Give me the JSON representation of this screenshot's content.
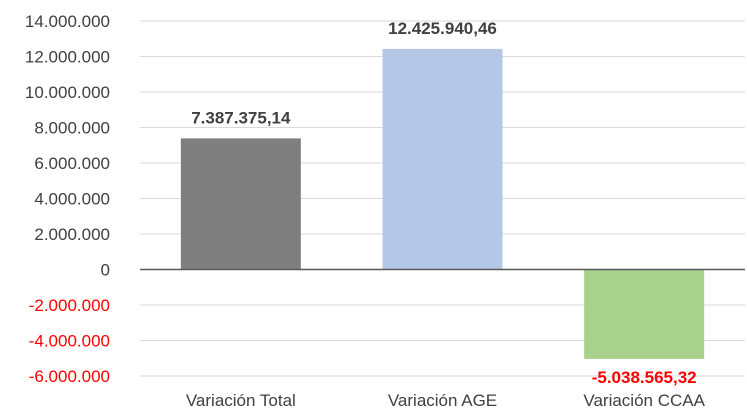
{
  "chart_data": {
    "type": "bar",
    "categories": [
      "Variación Total",
      "Variación AGE",
      "Variación CCAA"
    ],
    "values": [
      7387375.14,
      12425940.46,
      -5038565.32
    ],
    "data_labels": [
      "7.387.375,14",
      "12.425.940,46",
      "-5.038.565,32"
    ],
    "bar_colors": [
      "#7f7f7f",
      "#b4c7e7",
      "#a9d18e"
    ],
    "label_colors": [
      "#404040",
      "#404040",
      "#ff0000"
    ],
    "ylim": [
      -6000000,
      14000000
    ],
    "yticks": [
      {
        "value": 14000000,
        "label": "14.000.000",
        "color": "#404040"
      },
      {
        "value": 12000000,
        "label": "12.000.000",
        "color": "#404040"
      },
      {
        "value": 10000000,
        "label": "10.000.000",
        "color": "#404040"
      },
      {
        "value": 8000000,
        "label": "8.000.000",
        "color": "#404040"
      },
      {
        "value": 6000000,
        "label": "6.000.000",
        "color": "#404040"
      },
      {
        "value": 4000000,
        "label": "4.000.000",
        "color": "#404040"
      },
      {
        "value": 2000000,
        "label": "2.000.000",
        "color": "#404040"
      },
      {
        "value": 0,
        "label": "0",
        "color": "#404040"
      },
      {
        "value": -2000000,
        "label": "-2.000.000",
        "color": "#ff0000"
      },
      {
        "value": -4000000,
        "label": "-4.000.000",
        "color": "#ff0000"
      },
      {
        "value": -6000000,
        "label": "-6.000.000",
        "color": "#ff0000"
      }
    ],
    "grid": true,
    "title": "",
    "xlabel": "",
    "ylabel": ""
  }
}
